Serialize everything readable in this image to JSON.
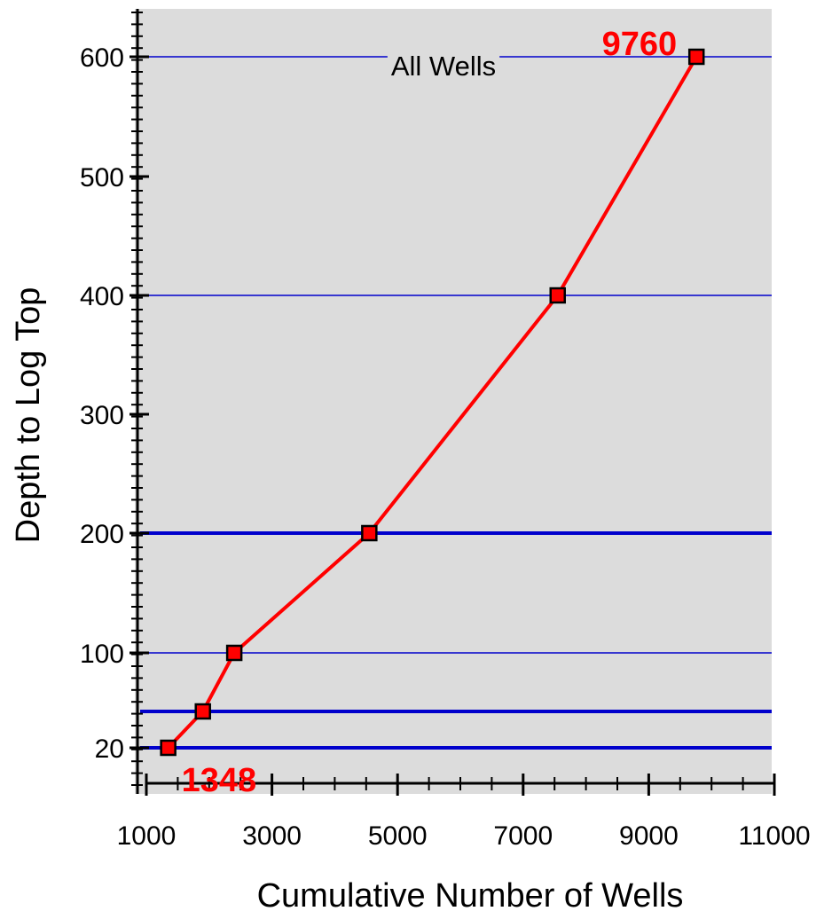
{
  "chart_data": {
    "type": "line",
    "title": "All Wells",
    "xlabel": "Cumulative Number of Wells",
    "ylabel": "Depth to Log Top",
    "xlim": [
      1000,
      11000
    ],
    "x_ticks": [
      1000,
      3000,
      5000,
      7000,
      9000,
      11000
    ],
    "y_ticks": [
      20,
      100,
      200,
      300,
      400,
      500,
      600
    ],
    "gridlines_y": [
      {
        "value": 20,
        "weight": "heavy"
      },
      {
        "value": 50,
        "weight": "heavy"
      },
      {
        "value": 100,
        "weight": "light"
      },
      {
        "value": 200,
        "weight": "heavy"
      },
      {
        "value": 400,
        "weight": "light"
      },
      {
        "value": 600,
        "weight": "light"
      }
    ],
    "grid": true,
    "legend": "none",
    "colors": {
      "series": "#ff0000",
      "marker_fill": "#ff0000",
      "marker_edge": "#000000",
      "grid": "#0000cc",
      "plot_bg": "#dcdcdc"
    },
    "series": [
      {
        "x": [
          1348,
          1900,
          2400,
          4550,
          7550,
          9760
        ],
        "y": [
          20,
          50,
          100,
          200,
          400,
          600
        ]
      }
    ],
    "annotations": [
      {
        "text": "1348",
        "x": 1348,
        "y": 20,
        "position": "below-right"
      },
      {
        "text": "9760",
        "x": 9760,
        "y": 600,
        "position": "left"
      }
    ]
  }
}
